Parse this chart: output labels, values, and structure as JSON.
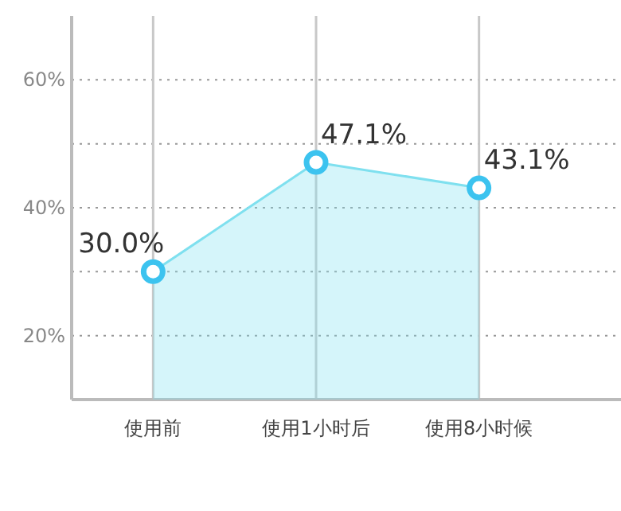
{
  "chart_data": {
    "type": "area",
    "categories": [
      "使用前",
      "使用1小时后",
      "使用8小时候"
    ],
    "series": [
      {
        "color": "#7fe0ef",
        "values": [
          30.0,
          47.1,
          43.1
        ],
        "value_labels": [
          "30.0%",
          "47.1%",
          "43.1%"
        ]
      }
    ],
    "ylim": [
      10,
      70
    ],
    "yticks": [
      {
        "value": 20,
        "label": "20%"
      },
      {
        "value": 30,
        "label": null
      },
      {
        "value": 40,
        "label": "40%"
      },
      {
        "value": 50,
        "label": null
      },
      {
        "value": 60,
        "label": "60%"
      }
    ],
    "grid": true,
    "marker": "circle"
  }
}
